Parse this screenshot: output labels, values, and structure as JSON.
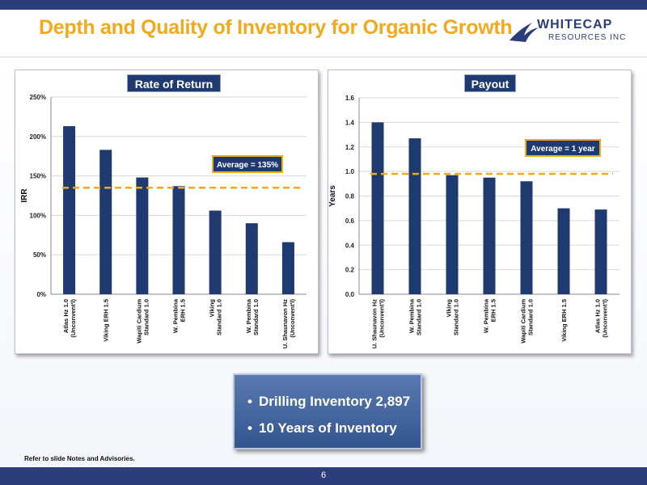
{
  "header": {
    "title": "Depth and Quality of Inventory for Organic Growth",
    "logo_text": "WHITECAP",
    "logo_sub": "RESOURCES INC"
  },
  "colors": {
    "bar": "#1f3a70",
    "average_line": "#f3a91b",
    "title": "#f3a91b",
    "band": "#2b3d7a"
  },
  "chart_data": [
    {
      "type": "bar",
      "title": "Rate of Return",
      "ylabel": "IRR",
      "xlabel": "",
      "ylim": [
        0,
        250
      ],
      "yticks": [
        0,
        50,
        100,
        150,
        200,
        250
      ],
      "ytick_labels": [
        "0%",
        "50%",
        "100%",
        "150%",
        "200%",
        "250%"
      ],
      "categories": [
        [
          "Atlas Hz 1.0",
          "(Unconvent'l)"
        ],
        [
          "Viking ERH 1.5"
        ],
        [
          "Wapiti Cardium",
          "Standard 1.0"
        ],
        [
          "W. Pembina",
          "ERH 1.5"
        ],
        [
          "Viking",
          "Standard 1.0"
        ],
        [
          "W. Pembina",
          "Standard 1.0"
        ],
        [
          "U. Shaunavon Hz",
          "(Unconvent'l)"
        ]
      ],
      "values": [
        213,
        183,
        148,
        137,
        106,
        90,
        66
      ],
      "average": 135,
      "average_label": "Average = 135%",
      "grid": true
    },
    {
      "type": "bar",
      "title": "Payout",
      "ylabel": "Years",
      "xlabel": "",
      "ylim": [
        0,
        1.6
      ],
      "yticks": [
        0,
        0.2,
        0.4,
        0.6,
        0.8,
        1.0,
        1.2,
        1.4,
        1.6
      ],
      "ytick_labels": [
        "0.0",
        "0.2",
        "0.4",
        "0.6",
        "0.8",
        "1.0",
        "1.2",
        "1.4",
        "1.6"
      ],
      "categories": [
        [
          "U. Shaunavon Hz",
          "(Unconvent'l)"
        ],
        [
          "W. Pembina",
          "Standard 1.0"
        ],
        [
          "Viking",
          "Standard 1.0"
        ],
        [
          "W. Pembina",
          "ERH 1.5"
        ],
        [
          "Wapiti Cardium",
          "Standard 1.0"
        ],
        [
          "Viking ERH 1.5"
        ],
        [
          "Atlas Hz 1.0",
          "(Unconvent'l)"
        ]
      ],
      "values": [
        1.4,
        1.27,
        0.97,
        0.95,
        0.92,
        0.7,
        0.69
      ],
      "average": 0.98,
      "average_label": "Average = 1 year",
      "grid": true
    }
  ],
  "callout": {
    "items": [
      "Drilling Inventory 2,897",
      "10 Years of Inventory"
    ]
  },
  "footnote": "Refer to slide Notes and Advisories.",
  "page_number": "6"
}
